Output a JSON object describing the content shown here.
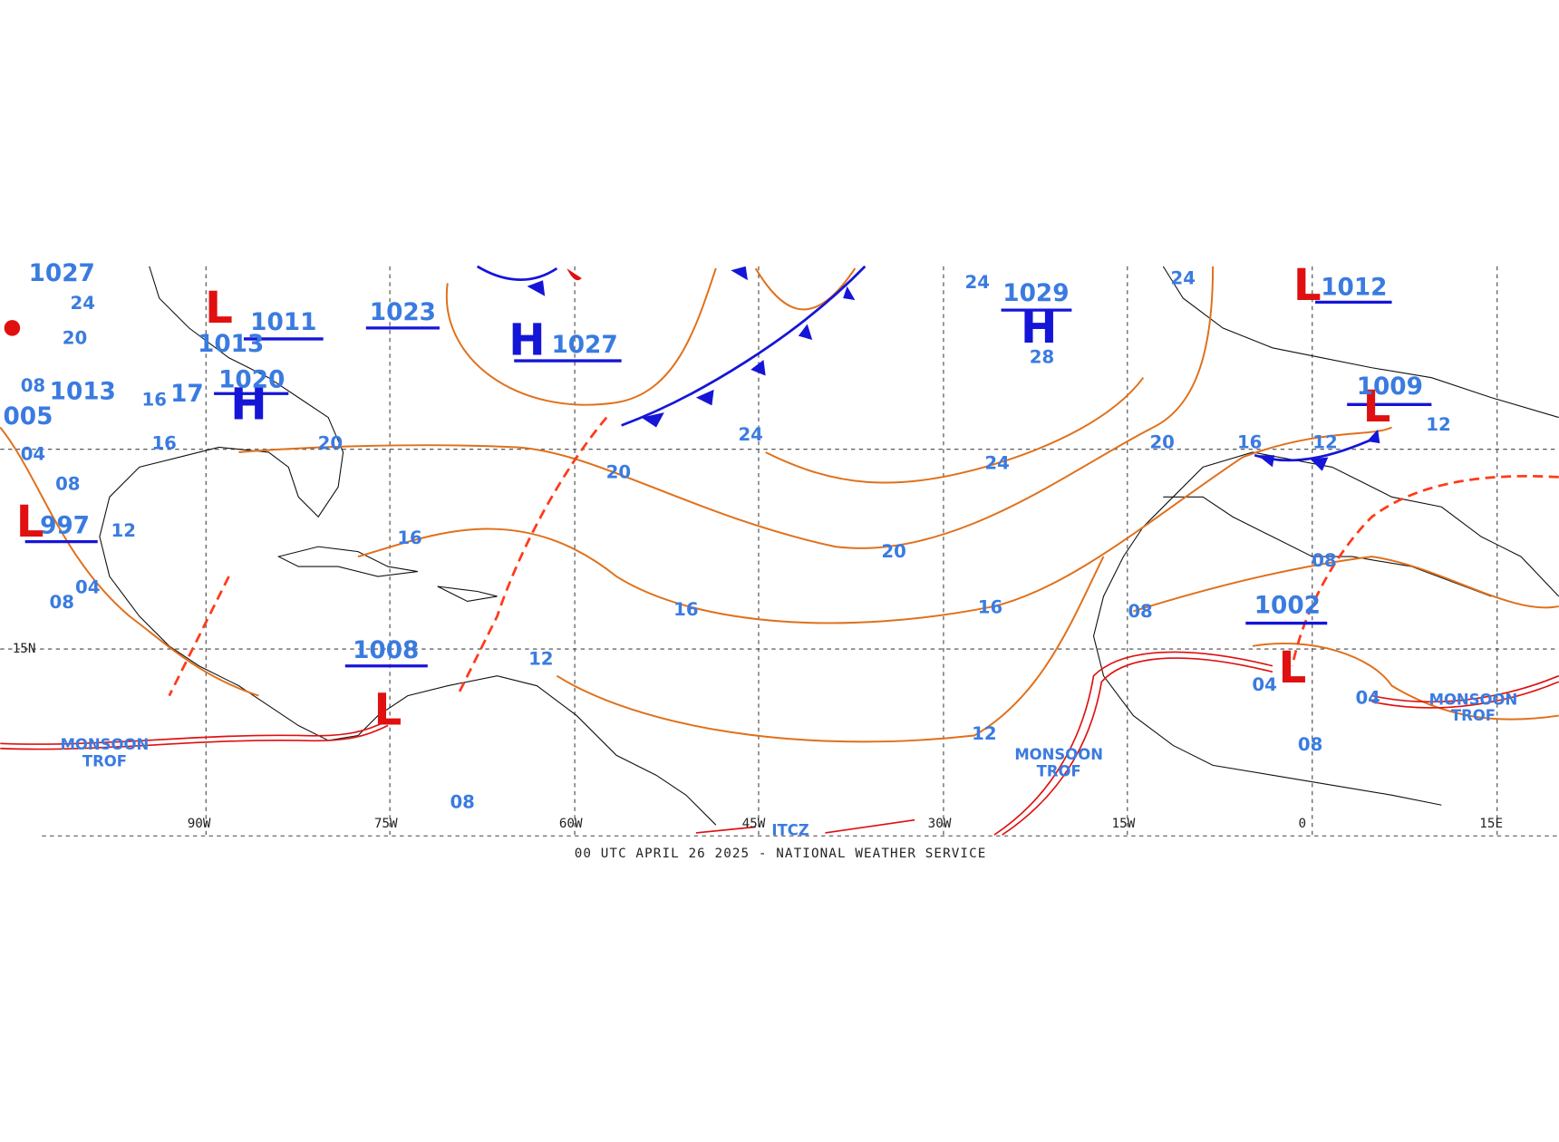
{
  "footer": "00 UTC APRIL 26 2025 - NATIONAL WEATHER SERVICE",
  "grid_labels": {
    "longitudes": [
      "90W",
      "75W",
      "60W",
      "45W",
      "30W",
      "15W",
      "0",
      "15E"
    ],
    "latitudes": [
      "15N"
    ]
  },
  "highs": [
    {
      "letter": "H",
      "pressure": "1027"
    },
    {
      "letter": "H",
      "pressure": "1029"
    },
    {
      "letter": "H",
      "pressure": "1020"
    }
  ],
  "lows": [
    {
      "letter": "L",
      "pressure": "1011"
    },
    {
      "letter": "L",
      "pressure": "997"
    },
    {
      "letter": "L",
      "pressure": "1012"
    },
    {
      "letter": "L",
      "pressure": "1009"
    },
    {
      "letter": "L",
      "pressure": "1002"
    },
    {
      "letter": "L",
      "pressure": "1008"
    }
  ],
  "other_pressures": [
    "1027",
    "1023",
    "1013",
    "1013",
    "005",
    "17"
  ],
  "isobar_labels": [
    "24",
    "20",
    "08",
    "04",
    "08",
    "12",
    "04",
    "08",
    "16",
    "16",
    "20",
    "16",
    "12",
    "08",
    "20",
    "16",
    "24",
    "20",
    "24",
    "16",
    "12",
    "24",
    "28",
    "24",
    "20",
    "16",
    "12",
    "12",
    "08",
    "08",
    "04",
    "04",
    "08"
  ],
  "annotations": [
    "MONSOON",
    "TROF",
    "MONSOON",
    "TROF",
    "MONSOON",
    "TROF",
    "ITCZ"
  ]
}
